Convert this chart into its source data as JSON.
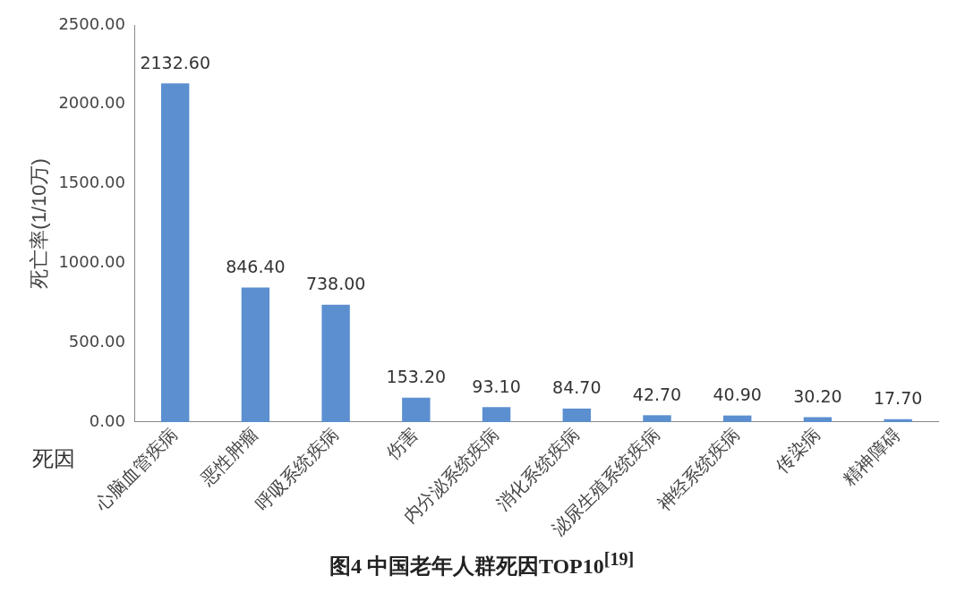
{
  "chart_data": {
    "type": "bar",
    "title": "图4  中国老年人群死因TOP10$^{[19]}$",
    "xlabel": "死因",
    "ylabel": "死亡率(1/10万)",
    "categories": [
      "心脑血管疾病",
      "恶性肿瘤",
      "呼吸系统疾病",
      "伤害",
      "内分泌系统疾病",
      "消化系统疾病",
      "泌尿生殖系统疾病",
      "神经系统疾病",
      "传染病",
      "精神障碍"
    ],
    "values": [
      2132.6,
      846.4,
      738.0,
      153.2,
      93.1,
      84.7,
      42.7,
      40.9,
      30.2,
      17.7
    ],
    "value_labels": [
      "2132.60",
      "846.40",
      "738.00",
      "153.20",
      "93.10",
      "84.70",
      "42.70",
      "40.90",
      "30.20",
      "17.70"
    ],
    "color": "#5b8fd0",
    "ylim": [
      0,
      2500
    ],
    "yticks": [
      {
        "value": 0,
        "label": "0.00"
      },
      {
        "value": 500,
        "label": "500.00"
      },
      {
        "value": 1000,
        "label": "1000.00"
      },
      {
        "value": 1500,
        "label": "1500.00"
      },
      {
        "value": 2000,
        "label": "2000.00"
      },
      {
        "value": 2500,
        "label": "2500.00"
      }
    ],
    "grid": false,
    "legend": false
  }
}
